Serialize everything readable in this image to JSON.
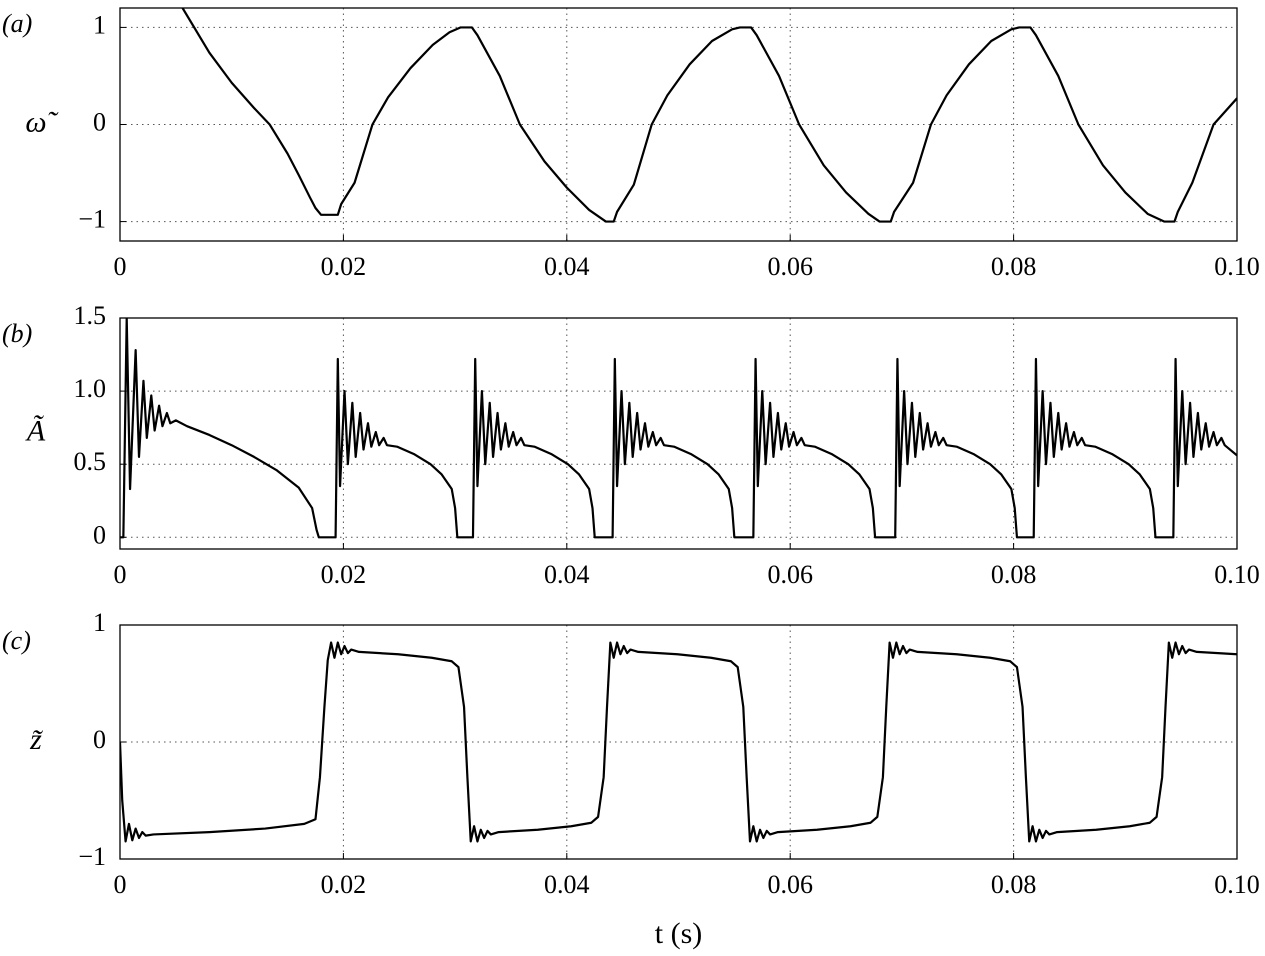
{
  "chart_data": [
    {
      "type": "line",
      "panel_label": "(a)",
      "ylabel": "ω̃",
      "color": "#000000",
      "grid": true,
      "xlim": [
        0,
        0.1
      ],
      "ylim": [
        -1.2,
        1.2
      ],
      "xticks": [
        0,
        0.02,
        0.04,
        0.06,
        0.08,
        {
          "value": 0.1,
          "label": "0.10"
        }
      ],
      "yticks": [
        {
          "value": -1,
          "label": "−1"
        },
        0,
        1
      ],
      "x": [
        0.0056,
        0.008,
        0.01,
        0.012,
        0.0134,
        0.015,
        0.016,
        0.017,
        0.0175,
        0.018,
        0.0195,
        0.0198,
        0.021,
        0.0226,
        0.024,
        0.026,
        0.028,
        0.0295,
        0.0305,
        0.0315,
        0.032,
        0.034,
        0.0358,
        0.038,
        0.04,
        0.042,
        0.0435,
        0.0442,
        0.0445,
        0.046,
        0.0476,
        0.049,
        0.051,
        0.053,
        0.0548,
        0.0555,
        0.0565,
        0.057,
        0.059,
        0.0608,
        0.063,
        0.065,
        0.067,
        0.068,
        0.069,
        0.0693,
        0.071,
        0.0726,
        0.074,
        0.076,
        0.078,
        0.0798,
        0.0805,
        0.0815,
        0.082,
        0.084,
        0.0858,
        0.088,
        0.09,
        0.092,
        0.0935,
        0.0944,
        0.0947,
        0.096,
        0.0979,
        0.1
      ],
      "values": [
        1.2,
        0.74,
        0.43,
        0.17,
        0,
        -0.3,
        -0.52,
        -0.75,
        -0.86,
        -0.93,
        -0.93,
        -0.82,
        -0.6,
        0,
        0.28,
        0.58,
        0.82,
        0.95,
        1,
        1,
        0.92,
        0.5,
        0,
        -0.38,
        -0.65,
        -0.88,
        -1,
        -1,
        -0.9,
        -0.62,
        0,
        0.3,
        0.62,
        0.86,
        0.98,
        1,
        1,
        0.92,
        0.5,
        0,
        -0.42,
        -0.7,
        -0.92,
        -1,
        -1,
        -0.9,
        -0.6,
        0,
        0.3,
        0.62,
        0.86,
        0.98,
        1,
        1,
        0.92,
        0.5,
        0,
        -0.42,
        -0.7,
        -0.92,
        -1,
        -1,
        -0.9,
        -0.6,
        0,
        0.27
      ]
    },
    {
      "type": "line",
      "panel_label": "(b)",
      "ylabel": "Ã",
      "color": "#000000",
      "grid": true,
      "xlim": [
        0,
        0.1
      ],
      "ylim": [
        -0.08,
        1.5
      ],
      "xticks": [
        0,
        0.02,
        0.04,
        0.06,
        0.08,
        {
          "value": 0.1,
          "label": "0.10"
        }
      ],
      "yticks": [
        0,
        0.5,
        {
          "value": 1,
          "label": "1.0"
        },
        1.5
      ],
      "x": [
        0,
        0.0003,
        0.0006,
        0.0009,
        0.0014,
        0.0017,
        0.0021,
        0.0024,
        0.0028,
        0.0031,
        0.0035,
        0.0038,
        0.0042,
        0.0045,
        0.005,
        0.006,
        0.008,
        0.01,
        0.012,
        0.014,
        0.016,
        0.0172,
        0.0176,
        0.0178,
        0.0193,
        0.0195,
        0.0197,
        0.0201,
        0.0204,
        0.0208,
        0.0211,
        0.0215,
        0.0218,
        0.0222,
        0.0225,
        0.0229,
        0.0232,
        0.0236,
        0.0239,
        0.0248,
        0.0263,
        0.0278,
        0.0288,
        0.0297,
        0.03,
        0.0302,
        0.0316,
        0.0318,
        0.032,
        0.0324,
        0.0327,
        0.0331,
        0.0334,
        0.0338,
        0.0341,
        0.0345,
        0.0348,
        0.0352,
        0.0355,
        0.0359,
        0.0362,
        0.0371,
        0.0386,
        0.0401,
        0.0411,
        0.042,
        0.0423,
        0.0425,
        0.0441,
        0.0443,
        0.0445,
        0.0449,
        0.0452,
        0.0456,
        0.0459,
        0.0463,
        0.0466,
        0.047,
        0.0473,
        0.0477,
        0.048,
        0.0484,
        0.0487,
        0.0496,
        0.0511,
        0.0526,
        0.0536,
        0.0545,
        0.0548,
        0.055,
        0.0567,
        0.0569,
        0.0571,
        0.0575,
        0.0578,
        0.0582,
        0.0585,
        0.0589,
        0.0592,
        0.0596,
        0.0599,
        0.0603,
        0.0606,
        0.061,
        0.0613,
        0.0622,
        0.0637,
        0.0652,
        0.0662,
        0.0671,
        0.0674,
        0.0676,
        0.0694,
        0.0696,
        0.0698,
        0.0702,
        0.0705,
        0.0709,
        0.0712,
        0.0716,
        0.0719,
        0.0723,
        0.0726,
        0.073,
        0.0733,
        0.0737,
        0.074,
        0.0749,
        0.0764,
        0.0779,
        0.0789,
        0.0798,
        0.0801,
        0.0803,
        0.0818,
        0.082,
        0.0822,
        0.0826,
        0.0829,
        0.0833,
        0.0836,
        0.084,
        0.0843,
        0.0847,
        0.085,
        0.0854,
        0.0857,
        0.0861,
        0.0864,
        0.0873,
        0.0888,
        0.0903,
        0.0913,
        0.0922,
        0.0925,
        0.0927,
        0.0943,
        0.0945,
        0.0947,
        0.0951,
        0.0954,
        0.0958,
        0.0961,
        0.0965,
        0.0968,
        0.0972,
        0.0975,
        0.0979,
        0.0982,
        0.0986,
        0.0989,
        0.1
      ],
      "values": [
        0,
        0,
        1.5,
        0.33,
        1.28,
        0.55,
        1.07,
        0.68,
        0.97,
        0.73,
        0.9,
        0.76,
        0.85,
        0.78,
        0.8,
        0.76,
        0.7,
        0.63,
        0.55,
        0.46,
        0.34,
        0.2,
        0.05,
        0,
        0,
        1.22,
        0.35,
        1.0,
        0.5,
        0.92,
        0.55,
        0.85,
        0.6,
        0.78,
        0.62,
        0.72,
        0.63,
        0.68,
        0.63,
        0.62,
        0.57,
        0.5,
        0.43,
        0.33,
        0.2,
        0,
        0,
        1.22,
        0.35,
        1.0,
        0.5,
        0.92,
        0.55,
        0.85,
        0.6,
        0.78,
        0.62,
        0.72,
        0.63,
        0.68,
        0.63,
        0.62,
        0.57,
        0.5,
        0.43,
        0.33,
        0.2,
        0,
        0,
        1.22,
        0.35,
        1.0,
        0.5,
        0.92,
        0.55,
        0.85,
        0.6,
        0.78,
        0.62,
        0.72,
        0.63,
        0.68,
        0.63,
        0.62,
        0.57,
        0.5,
        0.43,
        0.33,
        0.2,
        0,
        0,
        1.22,
        0.35,
        1.0,
        0.5,
        0.92,
        0.55,
        0.85,
        0.6,
        0.78,
        0.62,
        0.72,
        0.63,
        0.68,
        0.63,
        0.62,
        0.57,
        0.5,
        0.43,
        0.33,
        0.2,
        0,
        0,
        1.22,
        0.35,
        1.0,
        0.5,
        0.92,
        0.55,
        0.85,
        0.6,
        0.78,
        0.62,
        0.72,
        0.63,
        0.68,
        0.63,
        0.62,
        0.57,
        0.5,
        0.43,
        0.33,
        0.2,
        0,
        0,
        1.22,
        0.35,
        1.0,
        0.5,
        0.92,
        0.55,
        0.85,
        0.6,
        0.78,
        0.62,
        0.72,
        0.63,
        0.68,
        0.63,
        0.62,
        0.57,
        0.5,
        0.43,
        0.33,
        0.2,
        0,
        0,
        1.22,
        0.35,
        1.0,
        0.5,
        0.92,
        0.55,
        0.85,
        0.6,
        0.78,
        0.62,
        0.72,
        0.63,
        0.68,
        0.63,
        0.56
      ]
    },
    {
      "type": "line",
      "panel_label": "(c)",
      "ylabel": "z̃",
      "xlabel": "t (s)",
      "color": "#000000",
      "grid": true,
      "xlim": [
        0,
        0.1
      ],
      "ylim": [
        -1,
        1
      ],
      "xticks": [
        0,
        0.02,
        0.04,
        0.06,
        0.08,
        {
          "value": 0.1,
          "label": "0.10"
        }
      ],
      "yticks": [
        {
          "value": -1,
          "label": "−1"
        },
        0,
        1
      ],
      "x": [
        0,
        0.0002,
        0.0005,
        0.0008,
        0.0011,
        0.0014,
        0.0017,
        0.002,
        0.0023,
        0.003,
        0.008,
        0.013,
        0.0165,
        0.0175,
        0.0179,
        0.0183,
        0.0186,
        0.0189,
        0.0192,
        0.0195,
        0.0198,
        0.0201,
        0.0204,
        0.0207,
        0.0214,
        0.0249,
        0.0279,
        0.0297,
        0.0303,
        0.0308,
        0.0311,
        0.0314,
        0.0317,
        0.032,
        0.0323,
        0.0326,
        0.0329,
        0.0332,
        0.0339,
        0.0374,
        0.0404,
        0.0422,
        0.0428,
        0.0433,
        0.0436,
        0.0439,
        0.0442,
        0.0445,
        0.0448,
        0.0451,
        0.0454,
        0.0457,
        0.0464,
        0.0499,
        0.0529,
        0.0547,
        0.0553,
        0.0558,
        0.0561,
        0.0564,
        0.0567,
        0.057,
        0.0573,
        0.0576,
        0.0579,
        0.0582,
        0.0589,
        0.0624,
        0.0654,
        0.0672,
        0.0678,
        0.0683,
        0.0686,
        0.0689,
        0.0692,
        0.0695,
        0.0698,
        0.0701,
        0.0704,
        0.0707,
        0.0714,
        0.0749,
        0.0779,
        0.0797,
        0.0803,
        0.0808,
        0.0811,
        0.0814,
        0.0817,
        0.082,
        0.0823,
        0.0826,
        0.0829,
        0.0832,
        0.0839,
        0.0874,
        0.0904,
        0.0922,
        0.0928,
        0.0933,
        0.0936,
        0.0939,
        0.0942,
        0.0945,
        0.0948,
        0.0951,
        0.0954,
        0.0957,
        0.0964,
        0.1
      ],
      "values": [
        0,
        -0.5,
        -0.85,
        -0.7,
        -0.84,
        -0.74,
        -0.82,
        -0.77,
        -0.8,
        -0.79,
        -0.77,
        -0.74,
        -0.7,
        -0.66,
        -0.3,
        0.3,
        0.7,
        0.85,
        0.72,
        0.85,
        0.75,
        0.82,
        0.76,
        0.79,
        0.77,
        0.75,
        0.72,
        0.69,
        0.64,
        0.3,
        -0.3,
        -0.85,
        -0.72,
        -0.85,
        -0.75,
        -0.82,
        -0.76,
        -0.79,
        -0.77,
        -0.75,
        -0.72,
        -0.69,
        -0.64,
        -0.3,
        0.3,
        0.85,
        0.72,
        0.85,
        0.75,
        0.82,
        0.76,
        0.79,
        0.77,
        0.75,
        0.72,
        0.69,
        0.64,
        0.3,
        -0.3,
        -0.85,
        -0.72,
        -0.85,
        -0.75,
        -0.82,
        -0.76,
        -0.79,
        -0.77,
        -0.75,
        -0.72,
        -0.69,
        -0.64,
        -0.3,
        0.3,
        0.85,
        0.72,
        0.85,
        0.75,
        0.82,
        0.76,
        0.79,
        0.77,
        0.75,
        0.72,
        0.69,
        0.64,
        0.3,
        -0.3,
        -0.85,
        -0.72,
        -0.85,
        -0.75,
        -0.82,
        -0.76,
        -0.79,
        -0.77,
        -0.75,
        -0.72,
        -0.69,
        -0.64,
        -0.3,
        0.3,
        0.85,
        0.72,
        0.85,
        0.75,
        0.82,
        0.76,
        0.79,
        0.77,
        0.75
      ]
    }
  ]
}
